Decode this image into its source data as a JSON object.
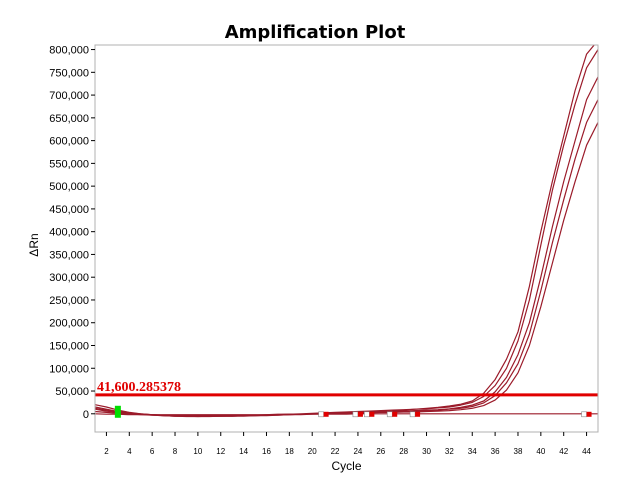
{
  "chart_data": {
    "type": "line",
    "title": "Amplification Plot",
    "xlabel": "Cycle",
    "ylabel": "ΔRn",
    "xlim": [
      1,
      45
    ],
    "ylim": [
      -40000,
      810000
    ],
    "x_ticks": [
      2,
      4,
      6,
      8,
      10,
      12,
      14,
      16,
      18,
      20,
      22,
      24,
      26,
      28,
      30,
      32,
      34,
      36,
      38,
      40,
      42,
      44
    ],
    "y_ticks": [
      0,
      50000,
      100000,
      150000,
      200000,
      250000,
      300000,
      350000,
      400000,
      450000,
      500000,
      550000,
      600000,
      650000,
      700000,
      750000,
      800000
    ],
    "y_tick_labels": [
      "0",
      "50,000",
      "100,000",
      "150,000",
      "200,000",
      "250,000",
      "300,000",
      "350,000",
      "400,000",
      "450,000",
      "500,000",
      "550,000",
      "600,000",
      "650,000",
      "700,000",
      "750,000",
      "800,000"
    ],
    "grid": false,
    "threshold": {
      "value": 41600.285378,
      "label": "41,600.285378",
      "color": "#e00000"
    },
    "series_color": "#9b1b2a",
    "x": [
      1,
      2,
      3,
      4,
      5,
      6,
      7,
      8,
      9,
      10,
      11,
      12,
      13,
      14,
      15,
      16,
      17,
      18,
      19,
      20,
      21,
      22,
      23,
      24,
      25,
      26,
      27,
      28,
      29,
      30,
      31,
      32,
      33,
      34,
      35,
      36,
      37,
      38,
      39,
      40,
      41,
      42,
      43,
      44,
      45
    ],
    "series": [
      {
        "values": [
          20000,
          15000,
          8000,
          3000,
          0,
          -2000,
          -4000,
          -5000,
          -5000,
          -5000,
          -5000,
          -5000,
          -5000,
          -4000,
          -4000,
          -3000,
          -2000,
          -2000,
          -1000,
          0,
          0,
          1000,
          2000,
          3000,
          4000,
          5000,
          6000,
          8000,
          10000,
          12000,
          14000,
          17000,
          21000,
          28000,
          45000,
          75000,
          120000,
          180000,
          280000,
          400000,
          510000,
          610000,
          710000,
          790000,
          820000
        ]
      },
      {
        "values": [
          15000,
          10000,
          5000,
          2000,
          0,
          -2000,
          -3000,
          -4000,
          -5000,
          -5000,
          -5000,
          -5000,
          -4000,
          -4000,
          -3000,
          -3000,
          -2000,
          -1000,
          0,
          1000,
          2000,
          3000,
          4000,
          5000,
          6000,
          7000,
          8000,
          9000,
          10000,
          11000,
          13000,
          15000,
          19000,
          25000,
          38000,
          62000,
          100000,
          160000,
          250000,
          370000,
          490000,
          590000,
          680000,
          760000,
          800000
        ]
      },
      {
        "values": [
          12000,
          8000,
          4000,
          1000,
          -1000,
          -3000,
          -4000,
          -5000,
          -5000,
          -6000,
          -5000,
          -5000,
          -5000,
          -4000,
          -4000,
          -3000,
          -3000,
          -2000,
          -1000,
          0,
          0,
          1000,
          2000,
          3000,
          3000,
          4000,
          5000,
          6000,
          7000,
          8000,
          9000,
          11000,
          14000,
          19000,
          28000,
          48000,
          80000,
          130000,
          200000,
          300000,
          410000,
          510000,
          600000,
          690000,
          740000
        ]
      },
      {
        "values": [
          10000,
          6000,
          3000,
          0,
          -2000,
          -3000,
          -4000,
          -5000,
          -6000,
          -6000,
          -6000,
          -5000,
          -5000,
          -5000,
          -4000,
          -4000,
          -3000,
          -2000,
          -2000,
          -1000,
          0,
          0,
          1000,
          2000,
          3000,
          3000,
          4000,
          5000,
          6000,
          7000,
          8000,
          10000,
          12000,
          16000,
          24000,
          40000,
          68000,
          110000,
          175000,
          270000,
          375000,
          470000,
          560000,
          640000,
          690000
        ]
      },
      {
        "values": [
          5000,
          3000,
          1000,
          0,
          -1000,
          -2000,
          -3000,
          -4000,
          -4000,
          -4000,
          -4000,
          -4000,
          -3000,
          -3000,
          -3000,
          -2000,
          -2000,
          -1000,
          -1000,
          0,
          0,
          1000,
          1000,
          2000,
          2000,
          3000,
          3000,
          4000,
          4000,
          5000,
          6000,
          7000,
          9000,
          12000,
          18000,
          30000,
          52000,
          90000,
          150000,
          235000,
          330000,
          425000,
          510000,
          590000,
          640000
        ]
      },
      {
        "values": [
          0,
          -1000,
          -1000,
          -2000,
          -2000,
          -2000,
          -2000,
          -2000,
          -2000,
          -2000,
          -2000,
          -2000,
          -2000,
          -2000,
          -2000,
          -2000,
          -1000,
          -1000,
          -1000,
          -1000,
          -1000,
          -1000,
          -1000,
          0,
          0,
          0,
          0,
          0,
          0,
          0,
          0,
          0,
          0,
          0,
          0,
          0,
          0,
          0,
          0,
          0,
          0,
          0,
          0,
          0,
          0
        ]
      }
    ],
    "markers": [
      {
        "cycle": 3,
        "type": "baseline-start",
        "color": "#00dd00"
      },
      {
        "cycle": 21,
        "type": "baseline-end",
        "color": "#e00000"
      },
      {
        "cycle": 24,
        "type": "baseline-end",
        "color": "#e00000"
      },
      {
        "cycle": 25,
        "type": "baseline-end",
        "color": "#e00000"
      },
      {
        "cycle": 27,
        "type": "baseline-end",
        "color": "#e00000"
      },
      {
        "cycle": 29,
        "type": "baseline-end",
        "color": "#e00000"
      },
      {
        "cycle": 44,
        "type": "baseline-end",
        "color": "#e00000"
      }
    ]
  }
}
